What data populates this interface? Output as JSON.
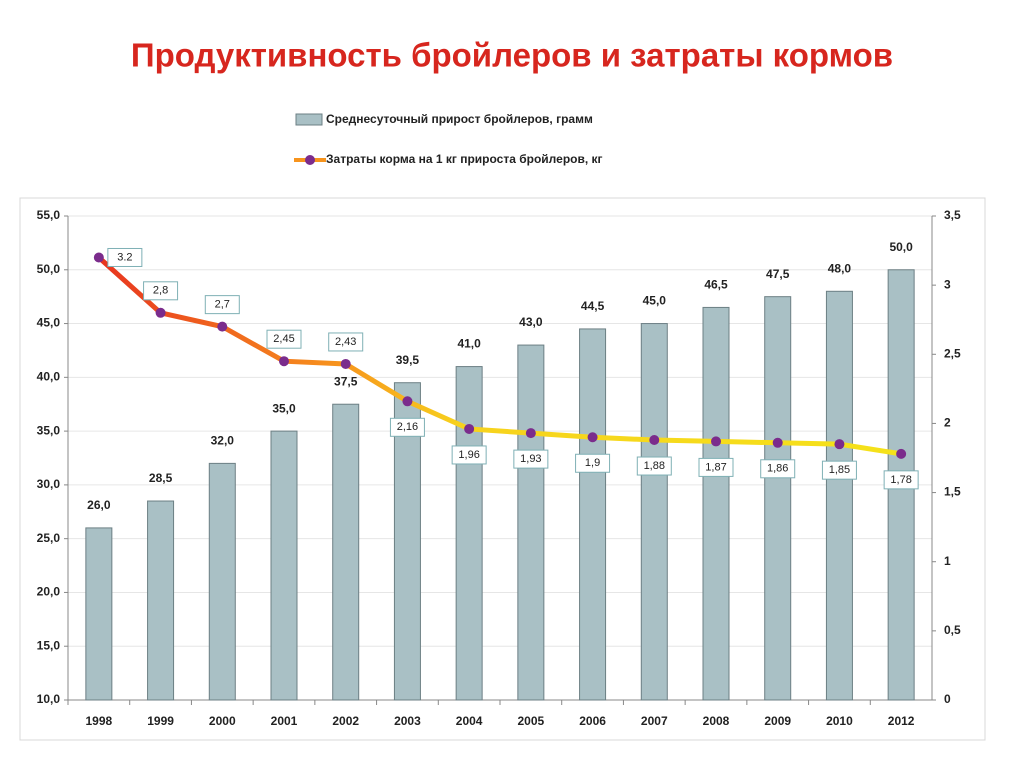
{
  "chart_data": {
    "type": "bar_line",
    "title": "Продуктивность бройлеров и затраты кормов",
    "categories": [
      "1998",
      "1999",
      "2000",
      "2001",
      "2002",
      "2003",
      "2004",
      "2005",
      "2006",
      "2007",
      "2008",
      "2009",
      "2010",
      "2012"
    ],
    "series": [
      {
        "name": "Среднесуточный прирост бройлеров, грамм",
        "type": "bar",
        "color": "#a9c0c5",
        "values": [
          26.0,
          28.5,
          32.0,
          35.0,
          37.5,
          39.5,
          41.0,
          43.0,
          44.5,
          45.0,
          46.5,
          47.5,
          48.0,
          50.0
        ],
        "value_labels": [
          "26,0",
          "28,5",
          "32,0",
          "35,0",
          "37,5",
          "39,5",
          "41,0",
          "43,0",
          "44,5",
          "45,0",
          "46,5",
          "47,5",
          "48,0",
          "50,0"
        ]
      },
      {
        "name": "Затраты корма на 1 кг прироста бройлеров, кг",
        "type": "line",
        "axis": "y2",
        "color": "#f7941d",
        "marker_color": "#7b2c8c",
        "values": [
          3.2,
          2.8,
          2.7,
          2.45,
          2.43,
          2.16,
          1.96,
          1.93,
          1.9,
          1.88,
          1.87,
          1.86,
          1.85,
          1.78
        ],
        "value_labels": [
          "3.2",
          "2,8",
          "2,7",
          "2,45",
          "2,43",
          "2,16",
          "1,96",
          "1,93",
          "1,9",
          "1,88",
          "1,87",
          "1,86",
          "1,85",
          "1,78"
        ]
      }
    ],
    "ylim": [
      10,
      55
    ],
    "yticks": [
      {
        "value": 10,
        "label": "10,0"
      },
      {
        "value": 15,
        "label": "15,0"
      },
      {
        "value": 20,
        "label": "20,0"
      },
      {
        "value": 25,
        "label": "25,0"
      },
      {
        "value": 30,
        "label": "30,0"
      },
      {
        "value": 35,
        "label": "35,0"
      },
      {
        "value": 40,
        "label": "40,0"
      },
      {
        "value": 45,
        "label": "45,0"
      },
      {
        "value": 50,
        "label": "50,0"
      },
      {
        "value": 55,
        "label": "55,0"
      }
    ],
    "y2lim": [
      0,
      3.5
    ],
    "y2ticks": [
      0,
      {
        "value": 0.5,
        "label": "0,5"
      },
      1,
      {
        "value": 1.5,
        "label": "1,5"
      },
      2,
      {
        "value": 2.5,
        "label": "2,5"
      },
      3,
      {
        "value": 3.5,
        "label": "3,5"
      }
    ],
    "grid": true
  }
}
